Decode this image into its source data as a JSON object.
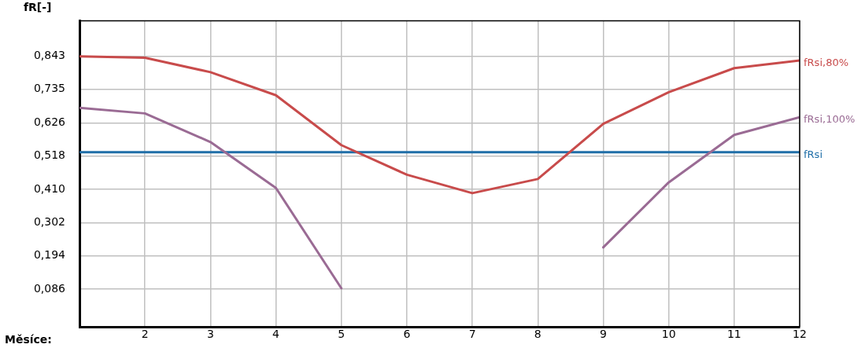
{
  "chart_data": {
    "type": "line",
    "xlabel": "Měsíce:",
    "ylabel": "fR[-]",
    "x": [
      1,
      2,
      3,
      4,
      5,
      6,
      7,
      8,
      9,
      10,
      11,
      12
    ],
    "series": [
      {
        "name": "fRsi,80%",
        "color": "#c84b4b",
        "values": [
          0.842,
          0.838,
          0.791,
          0.716,
          0.554,
          0.458,
          0.398,
          0.444,
          0.623,
          0.726,
          0.804,
          0.829
        ]
      },
      {
        "name": "fRsi,100%",
        "color": "#9a6b94",
        "values": [
          0.675,
          0.657,
          0.564,
          0.415,
          0.089,
          null,
          null,
          null,
          0.222,
          0.433,
          0.587,
          0.645
        ]
      },
      {
        "name": "fRsi",
        "color": "#1f6ea8",
        "values": [
          0.531,
          0.531,
          0.531,
          0.531,
          0.531,
          0.531,
          0.531,
          0.531,
          0.531,
          0.531,
          0.531,
          0.531
        ]
      }
    ],
    "xlim": [
      1,
      12
    ],
    "xticks": [
      2,
      3,
      4,
      5,
      6,
      7,
      8,
      9,
      10,
      11,
      12
    ],
    "ylim": [
      -0.036,
      0.958
    ],
    "yticks": [
      {
        "value": 0.086,
        "label": "0,086"
      },
      {
        "value": 0.194,
        "label": "0,194"
      },
      {
        "value": 0.302,
        "label": "0,302"
      },
      {
        "value": 0.41,
        "label": "0,410"
      },
      {
        "value": 0.518,
        "label": "0,518"
      },
      {
        "value": 0.626,
        "label": "0,626"
      },
      {
        "value": 0.735,
        "label": "0,735"
      },
      {
        "value": 0.843,
        "label": "0,843"
      }
    ],
    "grid": true,
    "legend": false,
    "marker": "none",
    "line_style": "solid"
  }
}
